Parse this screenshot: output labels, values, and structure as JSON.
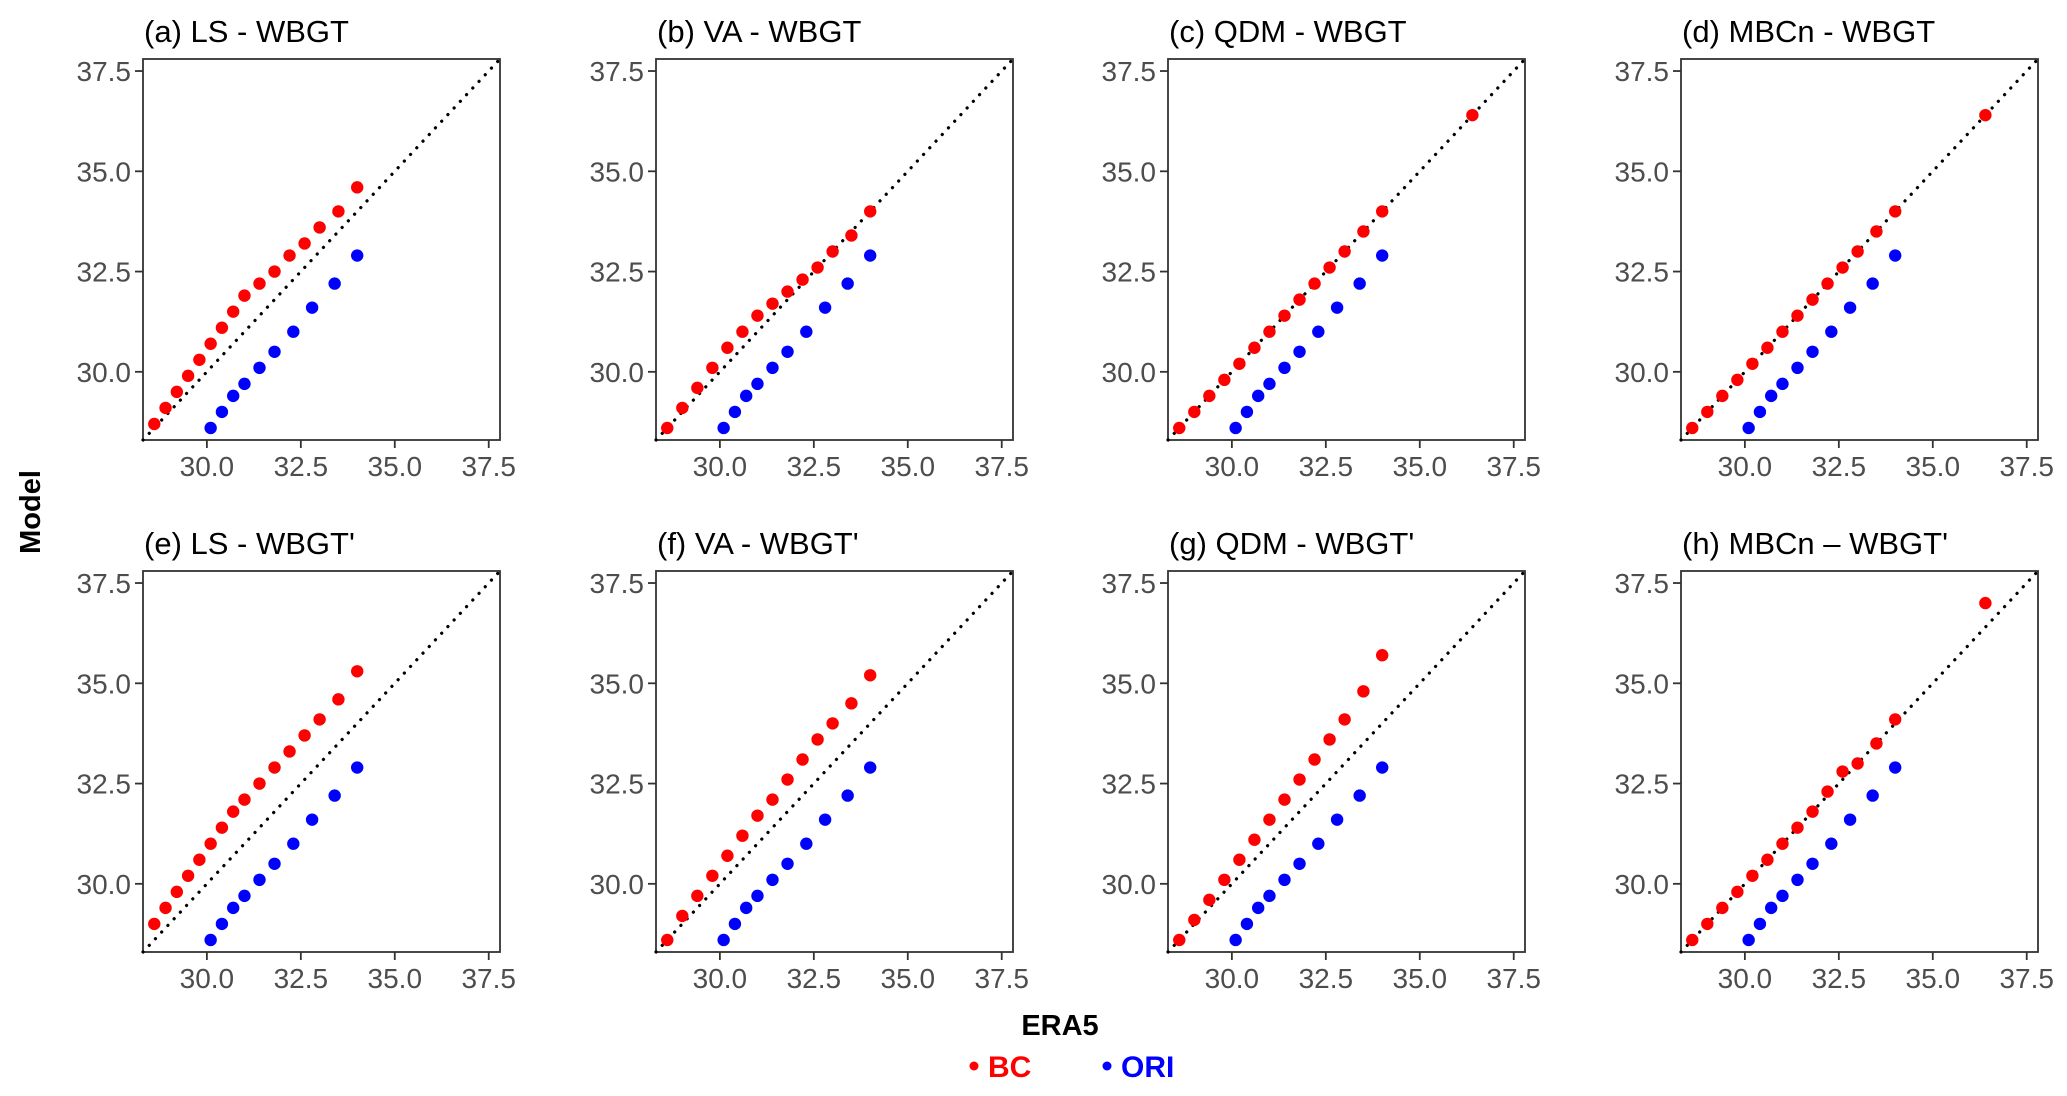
{
  "figure": {
    "xlabel": "ERA5",
    "ylabel": "Model",
    "legend": {
      "placement": "bottom-center",
      "items": [
        {
          "label": "BC",
          "color": "#ff0000"
        },
        {
          "label": "ORI",
          "color": "#0000ff"
        }
      ]
    }
  },
  "chart_data": [
    {
      "type": "scatter",
      "title": "(a) LS - WBGT",
      "xlim": [
        28.3,
        37.8
      ],
      "ylim": [
        28.3,
        37.8
      ],
      "ticks": [
        30.0,
        32.5,
        35.0,
        37.5
      ],
      "tick_labels": [
        "30.0",
        "32.5",
        "35.0",
        "37.5"
      ],
      "reference_line": "y = x (dotted)",
      "grid": false,
      "series": [
        {
          "name": "BC",
          "color": "#ff0000",
          "x": [
            28.6,
            28.9,
            29.2,
            29.5,
            29.8,
            30.1,
            30.4,
            30.7,
            31.0,
            31.4,
            31.8,
            32.2,
            32.6,
            33.0,
            33.5,
            34.0
          ],
          "y": [
            28.7,
            29.1,
            29.5,
            29.9,
            30.3,
            30.7,
            31.1,
            31.5,
            31.9,
            32.2,
            32.5,
            32.9,
            33.2,
            33.6,
            34.0,
            34.6
          ]
        },
        {
          "name": "ORI",
          "color": "#0000ff",
          "x": [
            30.1,
            30.4,
            30.7,
            31.0,
            31.4,
            31.8,
            32.3,
            32.8,
            33.4,
            34.0
          ],
          "y": [
            28.6,
            29.0,
            29.4,
            29.7,
            30.1,
            30.5,
            31.0,
            31.6,
            32.2,
            32.9
          ]
        }
      ]
    },
    {
      "type": "scatter",
      "title": "(b) VA - WBGT",
      "xlim": [
        28.3,
        37.8
      ],
      "ylim": [
        28.3,
        37.8
      ],
      "ticks": [
        30.0,
        32.5,
        35.0,
        37.5
      ],
      "tick_labels": [
        "30.0",
        "32.5",
        "35.0",
        "37.5"
      ],
      "reference_line": "y = x (dotted)",
      "grid": false,
      "series": [
        {
          "name": "BC",
          "color": "#ff0000",
          "x": [
            28.6,
            29.0,
            29.4,
            29.8,
            30.2,
            30.6,
            31.0,
            31.4,
            31.8,
            32.2,
            32.6,
            33.0,
            33.5,
            34.0
          ],
          "y": [
            28.6,
            29.1,
            29.6,
            30.1,
            30.6,
            31.0,
            31.4,
            31.7,
            32.0,
            32.3,
            32.6,
            33.0,
            33.4,
            34.0
          ]
        },
        {
          "name": "ORI",
          "color": "#0000ff",
          "x": [
            30.1,
            30.4,
            30.7,
            31.0,
            31.4,
            31.8,
            32.3,
            32.8,
            33.4,
            34.0
          ],
          "y": [
            28.6,
            29.0,
            29.4,
            29.7,
            30.1,
            30.5,
            31.0,
            31.6,
            32.2,
            32.9
          ]
        }
      ]
    },
    {
      "type": "scatter",
      "title": "(c) QDM - WBGT",
      "xlim": [
        28.3,
        37.8
      ],
      "ylim": [
        28.3,
        37.8
      ],
      "ticks": [
        30.0,
        32.5,
        35.0,
        37.5
      ],
      "tick_labels": [
        "30.0",
        "32.5",
        "35.0",
        "37.5"
      ],
      "reference_line": "y = x (dotted)",
      "grid": false,
      "series": [
        {
          "name": "BC",
          "color": "#ff0000",
          "x": [
            28.6,
            29.0,
            29.4,
            29.8,
            30.2,
            30.6,
            31.0,
            31.4,
            31.8,
            32.2,
            32.6,
            33.0,
            33.5,
            34.0,
            36.4
          ],
          "y": [
            28.6,
            29.0,
            29.4,
            29.8,
            30.2,
            30.6,
            31.0,
            31.4,
            31.8,
            32.2,
            32.6,
            33.0,
            33.5,
            34.0,
            36.4
          ]
        },
        {
          "name": "ORI",
          "color": "#0000ff",
          "x": [
            30.1,
            30.4,
            30.7,
            31.0,
            31.4,
            31.8,
            32.3,
            32.8,
            33.4,
            34.0
          ],
          "y": [
            28.6,
            29.0,
            29.4,
            29.7,
            30.1,
            30.5,
            31.0,
            31.6,
            32.2,
            32.9
          ]
        }
      ]
    },
    {
      "type": "scatter",
      "title": "(d) MBCn - WBGT",
      "xlim": [
        28.3,
        37.8
      ],
      "ylim": [
        28.3,
        37.8
      ],
      "ticks": [
        30.0,
        32.5,
        35.0,
        37.5
      ],
      "tick_labels": [
        "30.0",
        "32.5",
        "35.0",
        "37.5"
      ],
      "reference_line": "y = x (dotted)",
      "grid": false,
      "series": [
        {
          "name": "BC",
          "color": "#ff0000",
          "x": [
            28.6,
            29.0,
            29.4,
            29.8,
            30.2,
            30.6,
            31.0,
            31.4,
            31.8,
            32.2,
            32.6,
            33.0,
            33.5,
            34.0,
            36.4
          ],
          "y": [
            28.6,
            29.0,
            29.4,
            29.8,
            30.2,
            30.6,
            31.0,
            31.4,
            31.8,
            32.2,
            32.6,
            33.0,
            33.5,
            34.0,
            36.4
          ]
        },
        {
          "name": "ORI",
          "color": "#0000ff",
          "x": [
            30.1,
            30.4,
            30.7,
            31.0,
            31.4,
            31.8,
            32.3,
            32.8,
            33.4,
            34.0
          ],
          "y": [
            28.6,
            29.0,
            29.4,
            29.7,
            30.1,
            30.5,
            31.0,
            31.6,
            32.2,
            32.9
          ]
        }
      ]
    },
    {
      "type": "scatter",
      "title": "(e) LS - WBGT'",
      "xlim": [
        28.3,
        37.8
      ],
      "ylim": [
        28.3,
        37.8
      ],
      "ticks": [
        30.0,
        32.5,
        35.0,
        37.5
      ],
      "tick_labels": [
        "30.0",
        "32.5",
        "35.0",
        "37.5"
      ],
      "reference_line": "y = x (dotted)",
      "grid": false,
      "series": [
        {
          "name": "BC",
          "color": "#ff0000",
          "x": [
            28.6,
            28.9,
            29.2,
            29.5,
            29.8,
            30.1,
            30.4,
            30.7,
            31.0,
            31.4,
            31.8,
            32.2,
            32.6,
            33.0,
            33.5,
            34.0
          ],
          "y": [
            29.0,
            29.4,
            29.8,
            30.2,
            30.6,
            31.0,
            31.4,
            31.8,
            32.1,
            32.5,
            32.9,
            33.3,
            33.7,
            34.1,
            34.6,
            35.3
          ]
        },
        {
          "name": "ORI",
          "color": "#0000ff",
          "x": [
            30.1,
            30.4,
            30.7,
            31.0,
            31.4,
            31.8,
            32.3,
            32.8,
            33.4,
            34.0
          ],
          "y": [
            28.6,
            29.0,
            29.4,
            29.7,
            30.1,
            30.5,
            31.0,
            31.6,
            32.2,
            32.9
          ]
        }
      ]
    },
    {
      "type": "scatter",
      "title": "(f) VA - WBGT'",
      "xlim": [
        28.3,
        37.8
      ],
      "ylim": [
        28.3,
        37.8
      ],
      "ticks": [
        30.0,
        32.5,
        35.0,
        37.5
      ],
      "tick_labels": [
        "30.0",
        "32.5",
        "35.0",
        "37.5"
      ],
      "reference_line": "y = x (dotted)",
      "grid": false,
      "series": [
        {
          "name": "BC",
          "color": "#ff0000",
          "x": [
            28.6,
            29.0,
            29.4,
            29.8,
            30.2,
            30.6,
            31.0,
            31.4,
            31.8,
            32.2,
            32.6,
            33.0,
            33.5,
            34.0
          ],
          "y": [
            28.6,
            29.2,
            29.7,
            30.2,
            30.7,
            31.2,
            31.7,
            32.1,
            32.6,
            33.1,
            33.6,
            34.0,
            34.5,
            35.2
          ]
        },
        {
          "name": "ORI",
          "color": "#0000ff",
          "x": [
            30.1,
            30.4,
            30.7,
            31.0,
            31.4,
            31.8,
            32.3,
            32.8,
            33.4,
            34.0
          ],
          "y": [
            28.6,
            29.0,
            29.4,
            29.7,
            30.1,
            30.5,
            31.0,
            31.6,
            32.2,
            32.9
          ]
        }
      ]
    },
    {
      "type": "scatter",
      "title": "(g) QDM - WBGT'",
      "xlim": [
        28.3,
        37.8
      ],
      "ylim": [
        28.3,
        37.8
      ],
      "ticks": [
        30.0,
        32.5,
        35.0,
        37.5
      ],
      "tick_labels": [
        "30.0",
        "32.5",
        "35.0",
        "37.5"
      ],
      "reference_line": "y = x (dotted)",
      "grid": false,
      "series": [
        {
          "name": "BC",
          "color": "#ff0000",
          "x": [
            28.6,
            29.0,
            29.4,
            29.8,
            30.2,
            30.6,
            31.0,
            31.4,
            31.8,
            32.2,
            32.6,
            33.0,
            33.5,
            34.0
          ],
          "y": [
            28.6,
            29.1,
            29.6,
            30.1,
            30.6,
            31.1,
            31.6,
            32.1,
            32.6,
            33.1,
            33.6,
            34.1,
            34.8,
            35.7
          ]
        },
        {
          "name": "ORI",
          "color": "#0000ff",
          "x": [
            30.1,
            30.4,
            30.7,
            31.0,
            31.4,
            31.8,
            32.3,
            32.8,
            33.4,
            34.0
          ],
          "y": [
            28.6,
            29.0,
            29.4,
            29.7,
            30.1,
            30.5,
            31.0,
            31.6,
            32.2,
            32.9
          ]
        }
      ]
    },
    {
      "type": "scatter",
      "title": "(h) MBCn – WBGT'",
      "xlim": [
        28.3,
        37.8
      ],
      "ylim": [
        28.3,
        37.8
      ],
      "ticks": [
        30.0,
        32.5,
        35.0,
        37.5
      ],
      "tick_labels": [
        "30.0",
        "32.5",
        "35.0",
        "37.5"
      ],
      "reference_line": "y = x (dotted)",
      "grid": false,
      "series": [
        {
          "name": "BC",
          "color": "#ff0000",
          "x": [
            28.6,
            29.0,
            29.4,
            29.8,
            30.2,
            30.6,
            31.0,
            31.4,
            31.8,
            32.2,
            32.6,
            33.0,
            33.5,
            34.0,
            36.4
          ],
          "y": [
            28.6,
            29.0,
            29.4,
            29.8,
            30.2,
            30.6,
            31.0,
            31.4,
            31.8,
            32.3,
            32.8,
            33.0,
            33.5,
            34.1,
            37.0
          ]
        },
        {
          "name": "ORI",
          "color": "#0000ff",
          "x": [
            30.1,
            30.4,
            30.7,
            31.0,
            31.4,
            31.8,
            32.3,
            32.8,
            33.4,
            34.0
          ],
          "y": [
            28.6,
            29.0,
            29.4,
            29.7,
            30.1,
            30.5,
            31.0,
            31.6,
            32.2,
            32.9
          ]
        }
      ]
    }
  ]
}
